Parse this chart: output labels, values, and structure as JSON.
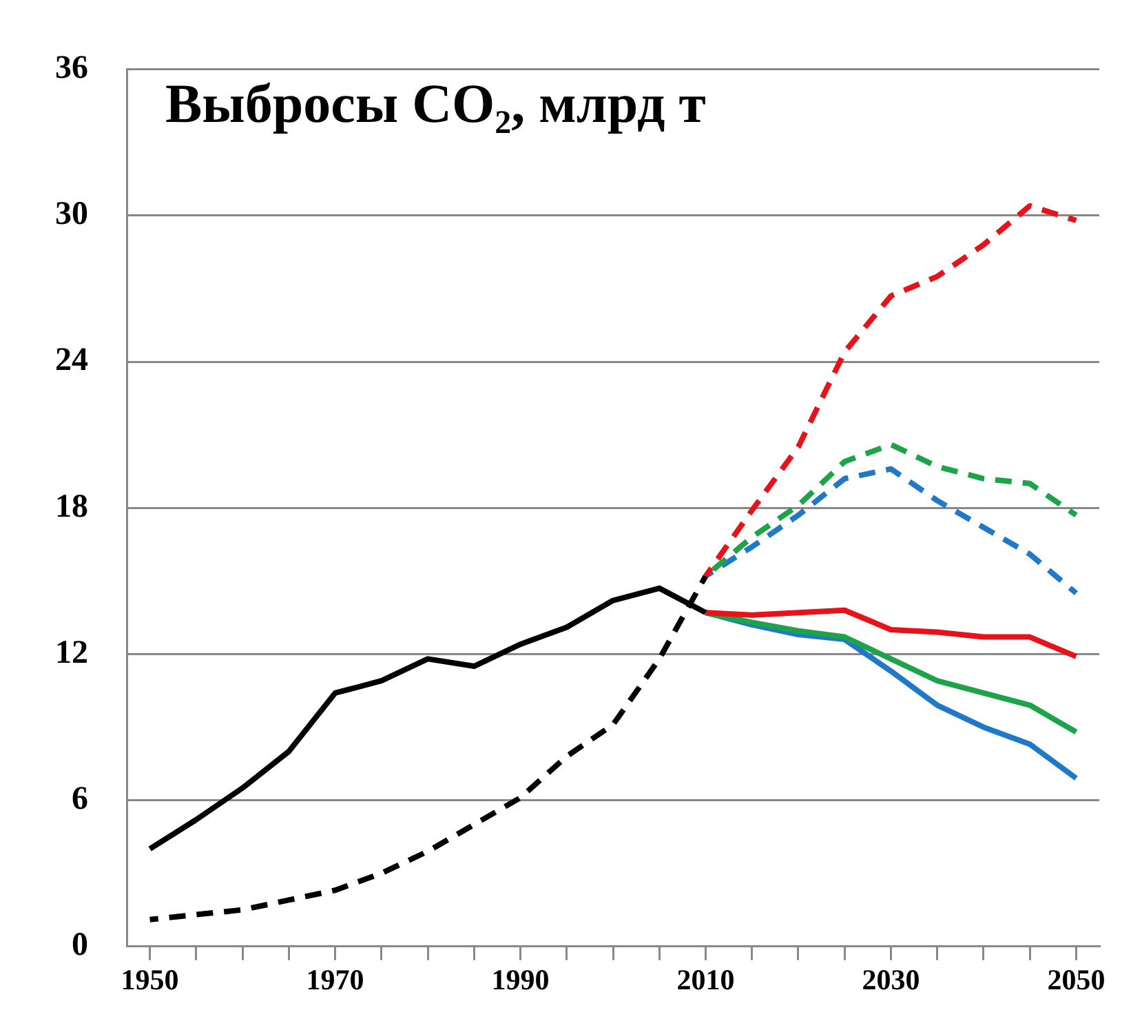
{
  "chart_data": {
    "type": "line",
    "title": "Выбросы CO₂, млрд т",
    "xlim": [
      1947.5,
      2052.5
    ],
    "xticks": [
      1950,
      {
        "value": 1955,
        "label": null
      },
      {
        "value": 1960,
        "label": null
      },
      {
        "value": 1965,
        "label": null
      },
      1970,
      {
        "value": 1975,
        "label": null
      },
      {
        "value": 1980,
        "label": null
      },
      {
        "value": 1985,
        "label": null
      },
      1990,
      {
        "value": 1995,
        "label": null
      },
      {
        "value": 2000,
        "label": null
      },
      {
        "value": 2005,
        "label": null
      },
      2010,
      {
        "value": 2015,
        "label": null
      },
      {
        "value": 2020,
        "label": null
      },
      {
        "value": 2025,
        "label": null
      },
      2030,
      {
        "value": 2035,
        "label": null
      },
      {
        "value": 2040,
        "label": null
      },
      {
        "value": 2045,
        "label": null
      },
      2050
    ],
    "ylim": [
      0,
      36
    ],
    "yticks": [
      0,
      6,
      12,
      18,
      24,
      30,
      36
    ],
    "grid": "y",
    "legend": false,
    "marker": "none",
    "series": [
      {
        "color": "#000000",
        "line_style": "solid",
        "x": [
          1950,
          1955,
          1960,
          1965,
          1970,
          1975,
          1980,
          1985,
          1990,
          1995,
          2000,
          2005,
          2010
        ],
        "values": [
          4.0,
          5.2,
          6.5,
          8.0,
          10.4,
          10.9,
          11.8,
          11.5,
          12.4,
          13.1,
          14.2,
          14.7,
          13.7
        ]
      },
      {
        "color": "#000000",
        "line_style": "dashed",
        "x": [
          1950,
          1955,
          1960,
          1965,
          1970,
          1975,
          1980,
          1985,
          1990,
          1995,
          2000,
          2005,
          2010
        ],
        "values": [
          1.1,
          1.3,
          1.5,
          1.9,
          2.3,
          3.0,
          3.9,
          5.0,
          6.1,
          7.8,
          9.1,
          11.8,
          15.2
        ]
      },
      {
        "color": "#e8121a",
        "line_style": "dashed",
        "x": [
          2010,
          2015,
          2020,
          2025,
          2030,
          2035,
          2040,
          2045,
          2050
        ],
        "values": [
          15.2,
          17.9,
          20.5,
          24.4,
          26.7,
          27.5,
          28.8,
          30.4,
          29.8
        ]
      },
      {
        "color": "#1fa34a",
        "line_style": "dashed",
        "x": [
          2010,
          2015,
          2020,
          2025,
          2030,
          2035,
          2040,
          2045,
          2050
        ],
        "values": [
          15.2,
          16.8,
          18.1,
          19.9,
          20.6,
          19.7,
          19.2,
          19.0,
          17.7
        ]
      },
      {
        "color": "#1f78c8",
        "line_style": "dashed",
        "x": [
          2010,
          2015,
          2020,
          2025,
          2030,
          2035,
          2040,
          2045,
          2050
        ],
        "values": [
          15.2,
          16.4,
          17.7,
          19.2,
          19.6,
          18.3,
          17.2,
          16.1,
          14.5
        ]
      },
      {
        "color": "#e8121a",
        "line_style": "solid",
        "x": [
          2010,
          2015,
          2020,
          2025,
          2030,
          2035,
          2040,
          2045,
          2050
        ],
        "values": [
          13.7,
          13.6,
          13.7,
          13.8,
          13.0,
          12.9,
          12.7,
          12.7,
          11.9
        ]
      },
      {
        "color": "#1fa34a",
        "line_style": "solid",
        "x": [
          2010,
          2015,
          2020,
          2025,
          2030,
          2035,
          2040,
          2045,
          2050
        ],
        "values": [
          13.7,
          13.3,
          12.95,
          12.7,
          11.8,
          10.9,
          10.4,
          9.9,
          8.8
        ]
      },
      {
        "color": "#1f78c8",
        "line_style": "solid",
        "x": [
          2010,
          2015,
          2020,
          2025,
          2030,
          2035,
          2040,
          2045,
          2050
        ],
        "values": [
          13.7,
          13.2,
          12.8,
          12.6,
          11.3,
          9.9,
          9.0,
          8.3,
          6.9
        ]
      }
    ]
  }
}
